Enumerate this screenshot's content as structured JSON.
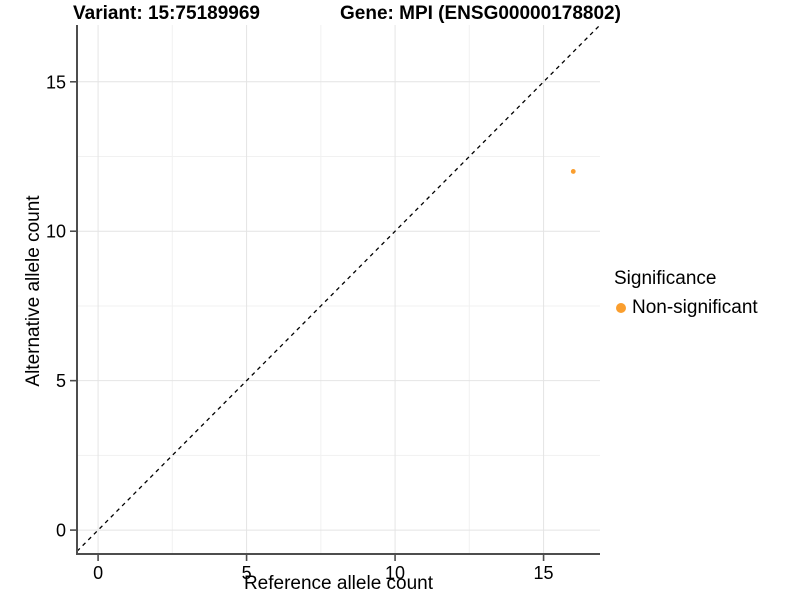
{
  "titles": {
    "variant": "Variant: 15:75189969",
    "gene": "Gene: MPI (ENSG00000178802)"
  },
  "legend": {
    "title": "Significance",
    "items": [
      {
        "label": "Non-significant",
        "color": "#FA9E2E"
      }
    ]
  },
  "colors": {
    "non_significant": "#FA9E2E",
    "grid_major": "#E4E4E4",
    "grid_minor": "#F1F1F1",
    "axis_line": "#4D4D4D",
    "identity_line": "#000000"
  },
  "chart_data": {
    "type": "scatter",
    "title": "Variant: 15:75189969 / Gene: MPI (ENSG00000178802)",
    "xlabel": "Reference allele count",
    "ylabel": "Alternative allele count",
    "xlim": [
      -0.71,
      16.9
    ],
    "ylim": [
      -0.8,
      16.9
    ],
    "x_ticks": [
      0,
      5,
      10,
      15
    ],
    "y_ticks": [
      0,
      5,
      10,
      15
    ],
    "x_minor_gridlines": [
      2.5,
      7.5,
      12.5
    ],
    "y_minor_gridlines": [
      2.5,
      7.5,
      12.5
    ],
    "grid": true,
    "legend_position": "right",
    "series": [
      {
        "name": "Non-significant",
        "color": "#FA9E2E",
        "points": [
          {
            "x": 16,
            "y": 12
          }
        ]
      }
    ],
    "reference_line": {
      "type": "identity-diagonal",
      "equation": "y = x",
      "style": "dashed",
      "color": "#000000"
    }
  }
}
